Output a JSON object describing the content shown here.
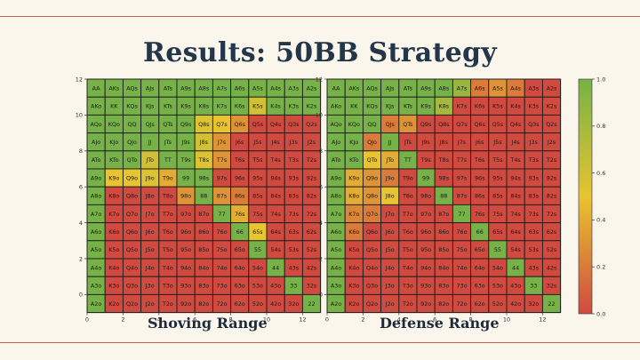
{
  "slide": {
    "title": "Results: 50BB Strategy",
    "left_caption": "Shoving Range",
    "right_caption": "Defense Range"
  },
  "colors": {
    "background": "#fbf6ec",
    "title": "#23364a",
    "rule": "#c9605a",
    "scale_low": "#d04a40",
    "scale_mid": "#e8c430",
    "scale_high": "#76b247"
  },
  "chart_data": [
    {
      "type": "heatmap",
      "name": "shoving",
      "x_ticks": [
        0,
        2,
        4,
        6,
        8,
        10,
        12
      ],
      "y_ticks": [
        12,
        10,
        8,
        6,
        4,
        2,
        0
      ],
      "labels": [
        [
          "AA",
          "AKs",
          "AQs",
          "AJs",
          "ATs",
          "A9s",
          "A8s",
          "A7s",
          "A6s",
          "A5s",
          "A4s",
          "A3s",
          "A2s"
        ],
        [
          "AKo",
          "KK",
          "KQs",
          "KJs",
          "KTs",
          "K9s",
          "K8s",
          "K7s",
          "K6s",
          "K5s",
          "K4s",
          "K3s",
          "K2s"
        ],
        [
          "AQo",
          "KQo",
          "QQ",
          "QJs",
          "QTs",
          "Q9s",
          "Q8s",
          "Q7s",
          "Q6s",
          "Q5s",
          "Q4s",
          "Q3s",
          "Q2s"
        ],
        [
          "AJo",
          "KJo",
          "QJo",
          "JJ",
          "JTs",
          "J9s",
          "J8s",
          "J7s",
          "J6s",
          "J5s",
          "J4s",
          "J3s",
          "J2s"
        ],
        [
          "ATo",
          "KTo",
          "QTo",
          "JTo",
          "TT",
          "T9s",
          "T8s",
          "T7s",
          "T6s",
          "T5s",
          "T4s",
          "T3s",
          "T2s"
        ],
        [
          "A9o",
          "K9o",
          "Q9o",
          "J9o",
          "T9o",
          "99",
          "98s",
          "97s",
          "96s",
          "95s",
          "94s",
          "93s",
          "92s"
        ],
        [
          "A8o",
          "K8o",
          "Q8o",
          "J8o",
          "T8o",
          "98o",
          "88",
          "87s",
          "86s",
          "85s",
          "84s",
          "83s",
          "82s"
        ],
        [
          "A7o",
          "K7o",
          "Q7o",
          "J7o",
          "T7o",
          "97o",
          "87o",
          "77",
          "76s",
          "75s",
          "74s",
          "73s",
          "72s"
        ],
        [
          "A6o",
          "K6o",
          "Q6o",
          "J6o",
          "T6o",
          "96o",
          "86o",
          "76o",
          "66",
          "65s",
          "64s",
          "63s",
          "62s"
        ],
        [
          "A5o",
          "K5o",
          "Q5o",
          "J5o",
          "T5o",
          "95o",
          "85o",
          "75o",
          "65o",
          "55",
          "54s",
          "53s",
          "52s"
        ],
        [
          "A4o",
          "K4o",
          "Q4o",
          "J4o",
          "T4o",
          "94o",
          "84o",
          "74o",
          "64o",
          "54o",
          "44",
          "43s",
          "42s"
        ],
        [
          "A3o",
          "K3o",
          "Q3o",
          "J3o",
          "T3o",
          "93o",
          "83o",
          "73o",
          "63o",
          "53o",
          "43o",
          "33",
          "32s"
        ],
        [
          "A2o",
          "K2o",
          "Q2o",
          "J2o",
          "T2o",
          "92o",
          "82o",
          "72o",
          "62o",
          "52o",
          "42o",
          "32o",
          "22"
        ]
      ],
      "values": [
        [
          1,
          1,
          1,
          1,
          1,
          1,
          1,
          1,
          1,
          1,
          1,
          1,
          1
        ],
        [
          1,
          1,
          1,
          1,
          1,
          1,
          1,
          1,
          1,
          0.6,
          1,
          1,
          1
        ],
        [
          1,
          1,
          1,
          1,
          1,
          1,
          0.55,
          0.5,
          0.3,
          0,
          0,
          0,
          0
        ],
        [
          1,
          1,
          1,
          1,
          1,
          1,
          0.6,
          0.3,
          0,
          0,
          0,
          0,
          0
        ],
        [
          1,
          1,
          1,
          0.6,
          1,
          1,
          0.55,
          0.3,
          0,
          0,
          0,
          0,
          0
        ],
        [
          1,
          0.5,
          0.5,
          0.55,
          0.4,
          1,
          1,
          0,
          0,
          0,
          0,
          0,
          0
        ],
        [
          1,
          0,
          0,
          0,
          0,
          0.3,
          1,
          0.3,
          0.2,
          0,
          0,
          0,
          0
        ],
        [
          1,
          0,
          0,
          0,
          0,
          0,
          0,
          1,
          0.4,
          0,
          0,
          0,
          0
        ],
        [
          1,
          0,
          0,
          0,
          0,
          0,
          0,
          0,
          1,
          0.5,
          0,
          0,
          0
        ],
        [
          1,
          0,
          0,
          0,
          0,
          0,
          0,
          0,
          0,
          1,
          0,
          0,
          0
        ],
        [
          1,
          0,
          0,
          0,
          0,
          0,
          0,
          0,
          0,
          0,
          1,
          0,
          0
        ],
        [
          1,
          0,
          0,
          0,
          0,
          0,
          0,
          0,
          0,
          0,
          0,
          1,
          0
        ],
        [
          1,
          0,
          0,
          0,
          0,
          0,
          0,
          0,
          0,
          0,
          0,
          0,
          1
        ]
      ]
    },
    {
      "type": "heatmap",
      "name": "defense",
      "x_ticks": [
        0,
        2,
        4,
        6,
        8,
        10,
        12
      ],
      "y_ticks": [
        12,
        10,
        8,
        6,
        4,
        2,
        0
      ],
      "colorbar_ticks": [
        0.0,
        0.2,
        0.4,
        0.6,
        0.8,
        1.0
      ],
      "labels": [
        [
          "AA",
          "AKs",
          "AQs",
          "AJs",
          "ATs",
          "A9s",
          "A8s",
          "A7s",
          "A6s",
          "A5s",
          "A4s",
          "A3s",
          "A2s"
        ],
        [
          "AKo",
          "KK",
          "KQs",
          "KJs",
          "KTs",
          "K9s",
          "K8s",
          "K7s",
          "K6s",
          "K5s",
          "K4s",
          "K3s",
          "K2s"
        ],
        [
          "AQo",
          "KQo",
          "QQ",
          "QJs",
          "QTs",
          "Q9s",
          "Q8s",
          "Q7s",
          "Q6s",
          "Q5s",
          "Q4s",
          "Q3s",
          "Q2s"
        ],
        [
          "AJo",
          "KJo",
          "QJo",
          "JJ",
          "JTs",
          "J9s",
          "J8s",
          "J7s",
          "J6s",
          "J5s",
          "J4s",
          "J3s",
          "J2s"
        ],
        [
          "ATo",
          "KTo",
          "QTo",
          "JTo",
          "TT",
          "T9s",
          "T8s",
          "T7s",
          "T6s",
          "T5s",
          "T4s",
          "T3s",
          "T2s"
        ],
        [
          "A9o",
          "K9o",
          "Q9o",
          "J9o",
          "T9o",
          "99",
          "98s",
          "97s",
          "96s",
          "95s",
          "94s",
          "93s",
          "92s"
        ],
        [
          "A8o",
          "K8o",
          "Q8o",
          "J8o",
          "T8o",
          "98o",
          "88",
          "87s",
          "86s",
          "85s",
          "84s",
          "83s",
          "82s"
        ],
        [
          "A7o",
          "K7o",
          "Q7o",
          "J7o",
          "T7o",
          "97o",
          "87o",
          "77",
          "76s",
          "75s",
          "74s",
          "73s",
          "72s"
        ],
        [
          "A6o",
          "K6o",
          "Q6o",
          "J6o",
          "T6o",
          "96o",
          "86o",
          "76o",
          "66",
          "65s",
          "64s",
          "63s",
          "62s"
        ],
        [
          "A5o",
          "K5o",
          "Q5o",
          "J5o",
          "T5o",
          "95o",
          "85o",
          "75o",
          "65o",
          "55",
          "54s",
          "53s",
          "52s"
        ],
        [
          "A4o",
          "K4o",
          "Q4o",
          "J4o",
          "T4o",
          "94o",
          "84o",
          "74o",
          "64o",
          "54o",
          "44",
          "43s",
          "42s"
        ],
        [
          "A3o",
          "K3o",
          "Q3o",
          "J3o",
          "T3o",
          "93o",
          "83o",
          "73o",
          "63o",
          "53o",
          "43o",
          "33",
          "32s"
        ],
        [
          "A2o",
          "K2o",
          "Q2o",
          "J2o",
          "T2o",
          "92o",
          "82o",
          "72o",
          "62o",
          "52o",
          "42o",
          "32o",
          "22"
        ]
      ],
      "values": [
        [
          1,
          1,
          1,
          1,
          1,
          1,
          1,
          0.85,
          0.2,
          0.3,
          0.2,
          0,
          0
        ],
        [
          1,
          1,
          1,
          1,
          1,
          1,
          0.8,
          0,
          0,
          0,
          0,
          0,
          0
        ],
        [
          1,
          1,
          1,
          0.2,
          0.3,
          0,
          0,
          0,
          0,
          0,
          0,
          0,
          0
        ],
        [
          1,
          1,
          0.2,
          1,
          0,
          0,
          0,
          0,
          0,
          0,
          0,
          0,
          0
        ],
        [
          1,
          1,
          0.5,
          0.4,
          1,
          0,
          0,
          0,
          0,
          0,
          0,
          0,
          0
        ],
        [
          1,
          0.4,
          0.3,
          0.2,
          0,
          1,
          0,
          0,
          0,
          0,
          0,
          0,
          0
        ],
        [
          1,
          0.4,
          0.3,
          0.5,
          0,
          0,
          1,
          0,
          0,
          0,
          0,
          0,
          0
        ],
        [
          1,
          0.25,
          0.2,
          0,
          0,
          0,
          0,
          1,
          0,
          0,
          0,
          0,
          0
        ],
        [
          1,
          0.2,
          0,
          0,
          0,
          0,
          0,
          0,
          1,
          0,
          0,
          0,
          0
        ],
        [
          1,
          0,
          0,
          0,
          0,
          0,
          0,
          0,
          0,
          1,
          0,
          0,
          0
        ],
        [
          1,
          0,
          0,
          0,
          0,
          0,
          0,
          0,
          0,
          0,
          1,
          0,
          0
        ],
        [
          1,
          0,
          0,
          0,
          0,
          0,
          0,
          0,
          0,
          0,
          0,
          1,
          0
        ],
        [
          1,
          0,
          0,
          0,
          0,
          0,
          0,
          0,
          0,
          0,
          0,
          0,
          1
        ]
      ]
    }
  ]
}
